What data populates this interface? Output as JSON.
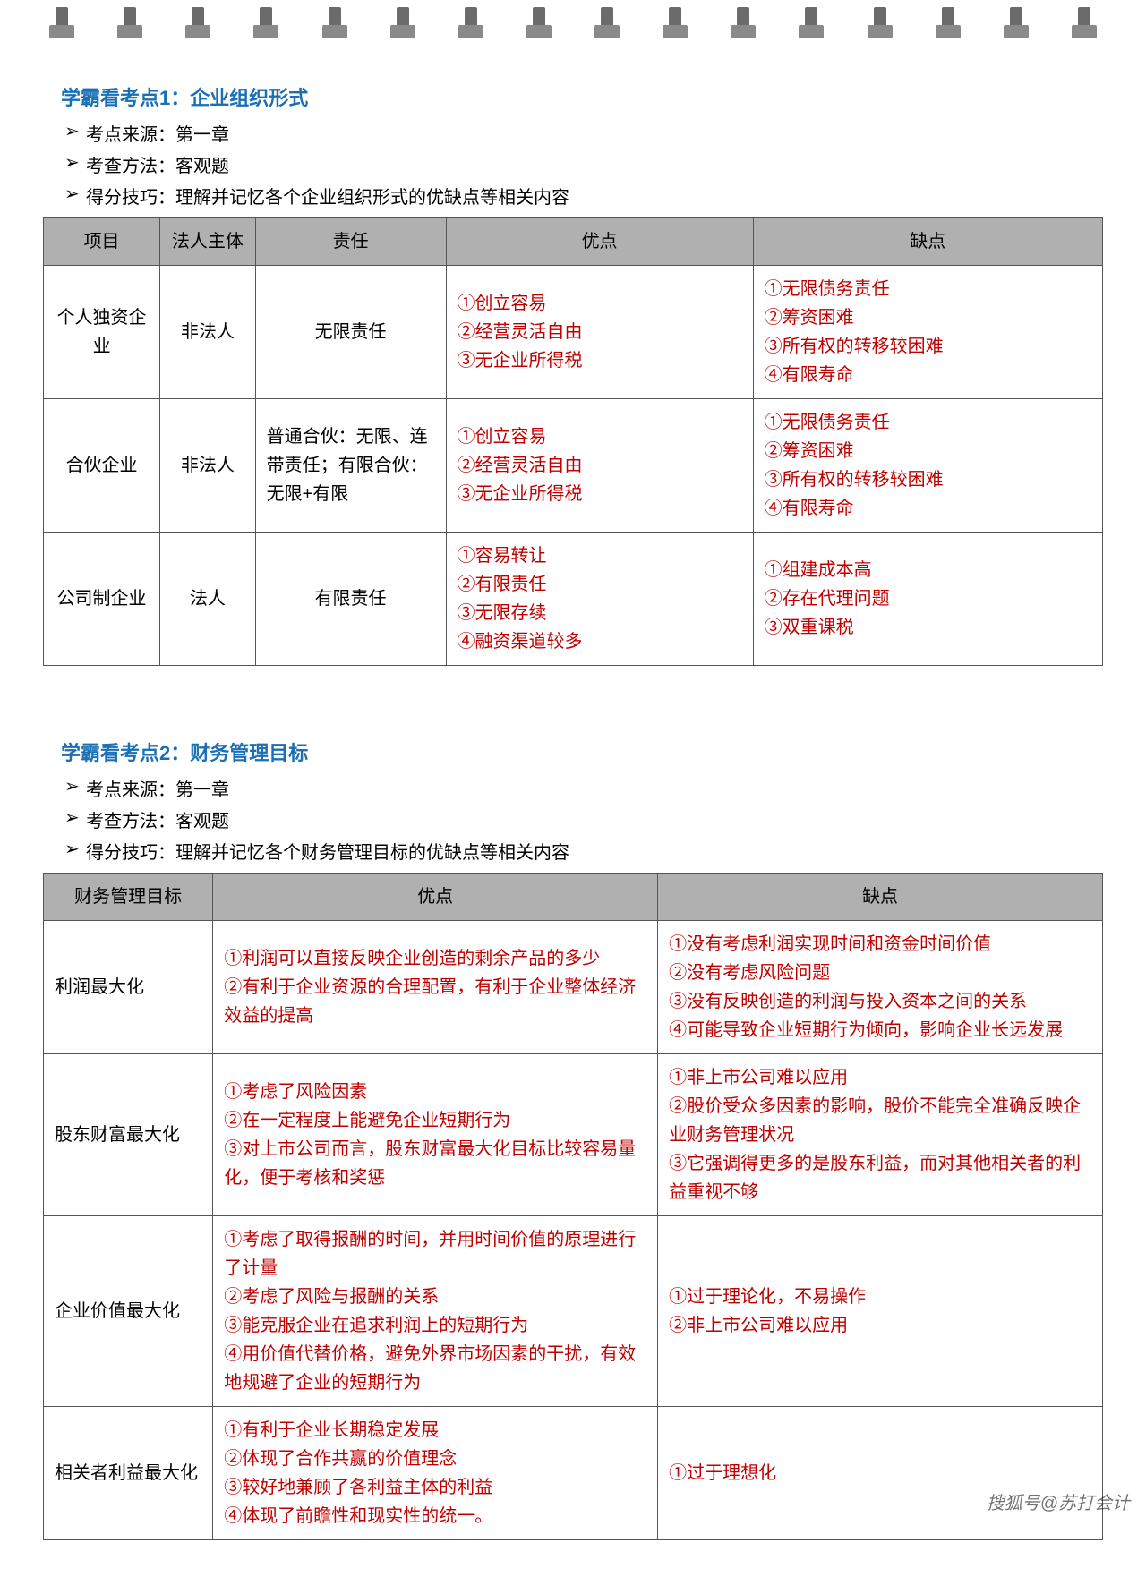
{
  "binding": {
    "hole_count": 16
  },
  "sections": [
    {
      "title": "学霸看考点1：企业组织形式",
      "meta": [
        "考点来源：第一章",
        "考查方法：客观题",
        "得分技巧：理解并记忆各个企业组织形式的优缺点等相关内容"
      ],
      "table": {
        "headers": [
          "项目",
          "法人主体",
          "责任",
          "优点",
          "缺点"
        ],
        "col_widths": [
          "11%",
          "9%",
          "18%",
          "29%",
          "33%"
        ],
        "rows": [
          {
            "cells": [
              {
                "text": "个人独资企业",
                "center": true
              },
              {
                "text": "非法人",
                "center": true
              },
              {
                "text": "无限责任",
                "center": true
              },
              {
                "text": "①创立容易\n②经营灵活自由\n③无企业所得税",
                "red": true
              },
              {
                "text": "①无限债务责任\n②筹资困难\n③所有权的转移较困难\n④有限寿命",
                "red": true
              }
            ]
          },
          {
            "cells": [
              {
                "text": "合伙企业",
                "center": true
              },
              {
                "text": "非法人",
                "center": true
              },
              {
                "text": "普通合伙：无限、连带责任；有限合伙：无限+有限"
              },
              {
                "text": "①创立容易\n②经营灵活自由\n③无企业所得税",
                "red": true
              },
              {
                "text": "①无限债务责任\n②筹资困难\n③所有权的转移较困难\n④有限寿命",
                "red": true
              }
            ]
          },
          {
            "cells": [
              {
                "text": "公司制企业",
                "center": true
              },
              {
                "text": "法人",
                "center": true
              },
              {
                "text": "有限责任",
                "center": true
              },
              {
                "text": "①容易转让\n②有限责任\n③无限存续\n④融资渠道较多",
                "red": true
              },
              {
                "text": "①组建成本高\n②存在代理问题\n③双重课税",
                "red": true
              }
            ]
          }
        ]
      }
    },
    {
      "title": "学霸看考点2：财务管理目标",
      "meta": [
        "考点来源：第一章",
        "考查方法：客观题",
        "得分技巧：理解并记忆各个财务管理目标的优缺点等相关内容"
      ],
      "table": {
        "headers": [
          "财务管理目标",
          "优点",
          "缺点"
        ],
        "col_widths": [
          "16%",
          "42%",
          "42%"
        ],
        "rows": [
          {
            "cells": [
              {
                "text": "利润最大化"
              },
              {
                "text": "①利润可以直接反映企业创造的剩余产品的多少\n②有利于企业资源的合理配置，有利于企业整体经济效益的提高",
                "red": true
              },
              {
                "text": "①没有考虑利润实现时间和资金时间价值\n②没有考虑风险问题\n③没有反映创造的利润与投入资本之间的关系\n④可能导致企业短期行为倾向，影响企业长远发展",
                "red": true
              }
            ]
          },
          {
            "cells": [
              {
                "text": "股东财富最大化"
              },
              {
                "text": "①考虑了风险因素\n②在一定程度上能避免企业短期行为\n③对上市公司而言，股东财富最大化目标比较容易量化，便于考核和奖惩",
                "red": true
              },
              {
                "text": "①非上市公司难以应用\n②股价受众多因素的影响，股价不能完全准确反映企业财务管理状况\n③它强调得更多的是股东利益，而对其他相关者的利益重视不够",
                "red": true
              }
            ]
          },
          {
            "cells": [
              {
                "text": "企业价值最大化"
              },
              {
                "text": "①考虑了取得报酬的时间，并用时间价值的原理进行了计量\n②考虑了风险与报酬的关系\n③能克服企业在追求利润上的短期行为\n④用价值代替价格，避免外界市场因素的干扰，有效地规避了企业的短期行为",
                "red": true
              },
              {
                "text": "①过于理论化，不易操作\n②非上市公司难以应用",
                "red": true
              }
            ]
          },
          {
            "cells": [
              {
                "text": "相关者利益最大化"
              },
              {
                "text": "①有利于企业长期稳定发展\n②体现了合作共赢的价值理念\n③较好地兼顾了各利益主体的利益\n④体现了前瞻性和现实性的统一。",
                "red": true
              },
              {
                "text": "①过于理想化",
                "red": true
              }
            ]
          }
        ]
      }
    }
  ],
  "watermark": "搜狐号@苏打会计",
  "colors": {
    "title_blue": "#1a6fb5",
    "red_text": "#c00000",
    "header_bg": "#b0b0b0",
    "border": "#555555",
    "spiral_dark": "#6b6b6b",
    "spiral_light": "#8a8a8a"
  },
  "typography": {
    "title_fontsize": 22,
    "body_fontsize": 20,
    "line_height": 1.6
  }
}
